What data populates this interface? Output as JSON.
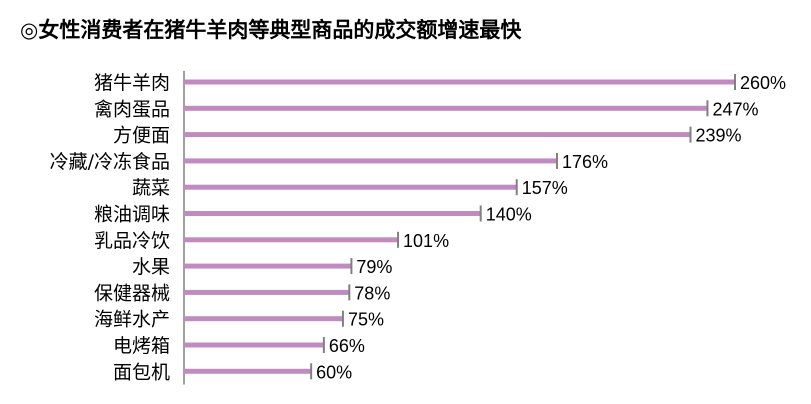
{
  "chart_data": {
    "type": "bar",
    "orientation": "horizontal",
    "title": "◎女性消费者在猪牛羊肉等典型商品的成交额增速最快",
    "categories": [
      "猪牛羊肉",
      "禽肉蛋品",
      "方便面",
      "冷藏/冷冻食品",
      "蔬菜",
      "粮油调味",
      "乳品冷饮",
      "水果",
      "保健器械",
      "海鲜水产",
      "电烤箱",
      "面包机"
    ],
    "values": [
      260,
      247,
      239,
      176,
      157,
      140,
      101,
      79,
      78,
      75,
      66,
      60
    ],
    "value_labels": [
      "260%",
      "247%",
      "239%",
      "176%",
      "157%",
      "140%",
      "101%",
      "79%",
      "78%",
      "75%",
      "66%",
      "60%"
    ],
    "unit": "%",
    "xlim": [
      0,
      260
    ],
    "bar_color": "#c08cc0",
    "axis_color": "#808080",
    "grid": false,
    "legend": "none"
  }
}
